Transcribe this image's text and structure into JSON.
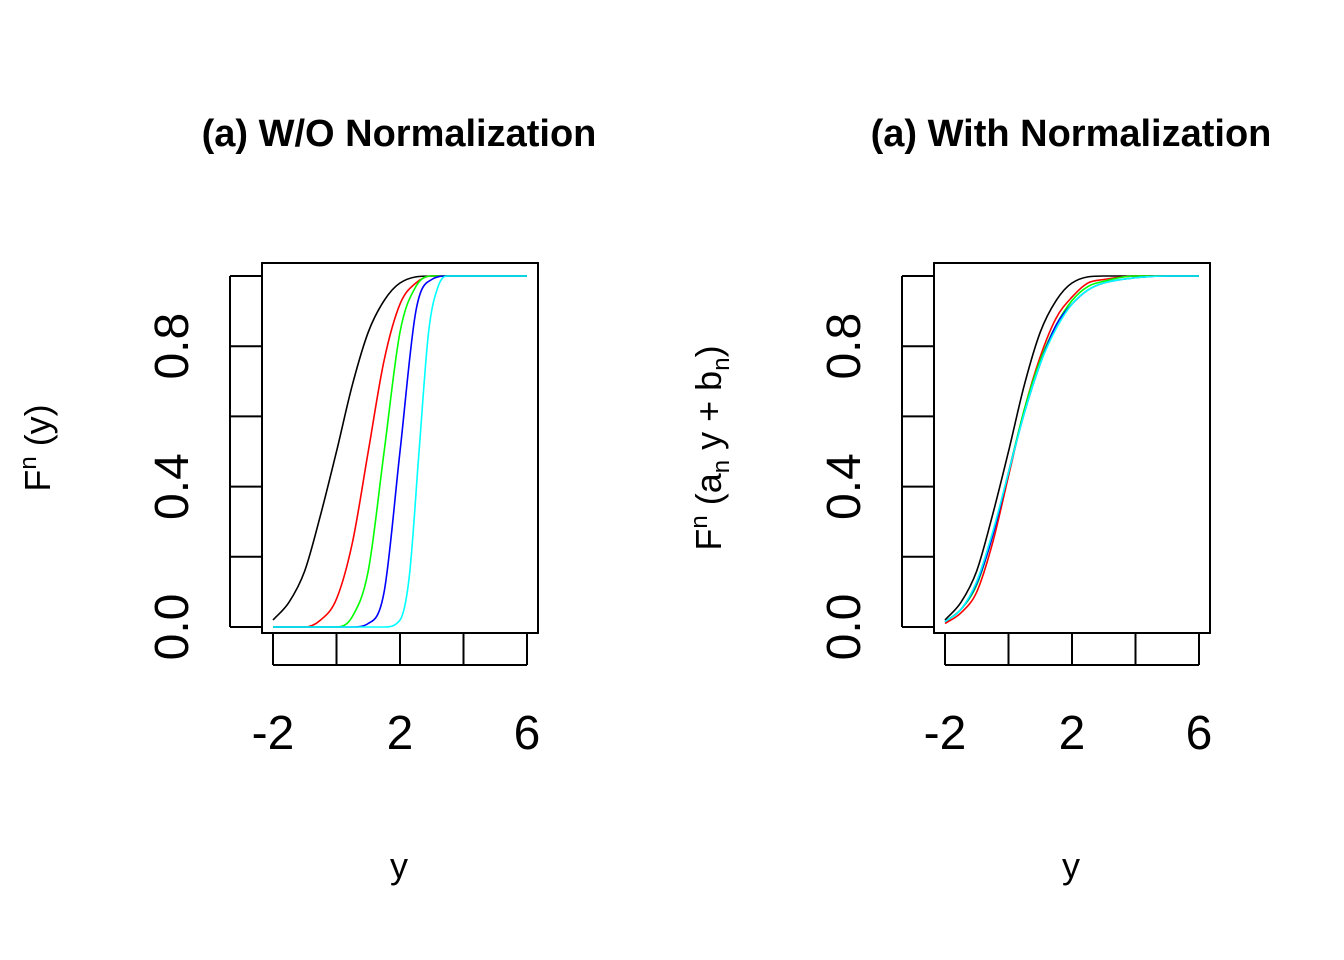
{
  "chart_data": [
    {
      "type": "line",
      "title": "(a) W/O Normalization",
      "xlabel": "y",
      "ylabel": {
        "base": "F",
        "sup": "n",
        "rest": " (y)"
      },
      "xlim": [
        -2,
        6
      ],
      "ylim": [
        0,
        1
      ],
      "xticks": [
        -2,
        0,
        2,
        4,
        6
      ],
      "xtick_labels": [
        "-2",
        "",
        "2",
        "",
        "6"
      ],
      "yticks": [
        0,
        0.2,
        0.4,
        0.6,
        0.8,
        1.0
      ],
      "ytick_labels": [
        "0.0",
        "",
        "0.4",
        "",
        "0.8",
        ""
      ],
      "grid": false,
      "series": [
        {
          "color": "#000000",
          "x": [
            -2,
            -1.5,
            -1,
            -0.5,
            0,
            0.5,
            1,
            1.5,
            2,
            3,
            4,
            5,
            6
          ],
          "y": [
            0.02,
            0.07,
            0.16,
            0.32,
            0.5,
            0.69,
            0.84,
            0.93,
            0.98,
            1.0,
            1.0,
            1.0,
            1.0
          ]
        },
        {
          "color": "#ff0000",
          "x": [
            -2,
            -1,
            -0.5,
            0,
            0.5,
            1,
            1.5,
            2,
            2.5,
            3,
            4,
            5,
            6
          ],
          "y": [
            0.0,
            0.0,
            0.02,
            0.08,
            0.24,
            0.5,
            0.76,
            0.92,
            0.98,
            1.0,
            1.0,
            1.0,
            1.0
          ]
        },
        {
          "color": "#00ff00",
          "x": [
            -2,
            0,
            0.5,
            1,
            1.5,
            2,
            2.5,
            3,
            3.5,
            4,
            5,
            6
          ],
          "y": [
            0.0,
            0.0,
            0.03,
            0.16,
            0.5,
            0.84,
            0.97,
            1.0,
            1.0,
            1.0,
            1.0,
            1.0
          ]
        },
        {
          "color": "#0000ff",
          "x": [
            -2,
            0.5,
            1,
            1.5,
            2,
            2.5,
            3,
            3.5,
            4,
            5,
            6
          ],
          "y": [
            0.0,
            0.0,
            0.01,
            0.1,
            0.5,
            0.9,
            0.99,
            1.0,
            1.0,
            1.0,
            1.0
          ]
        },
        {
          "color": "#00ffff",
          "x": [
            -2,
            1.5,
            2,
            2.3,
            2.6,
            2.9,
            3.2,
            3.5,
            4,
            5,
            6
          ],
          "y": [
            0.0,
            0.0,
            0.02,
            0.15,
            0.5,
            0.84,
            0.97,
            1.0,
            1.0,
            1.0,
            1.0
          ]
        }
      ]
    },
    {
      "type": "line",
      "title": "(a) With Normalization",
      "xlabel": "y",
      "ylabel": {
        "base": "F",
        "sup": "n",
        "open": " (a",
        "sub1": "n",
        "mid": " y + b",
        "sub2": "n",
        "close": ")"
      },
      "xlim": [
        -2,
        6
      ],
      "ylim": [
        0,
        1
      ],
      "xticks": [
        -2,
        0,
        2,
        4,
        6
      ],
      "xtick_labels": [
        "-2",
        "",
        "2",
        "",
        "6"
      ],
      "yticks": [
        0,
        0.2,
        0.4,
        0.6,
        0.8,
        1.0
      ],
      "ytick_labels": [
        "0.0",
        "",
        "0.4",
        "",
        "0.8",
        ""
      ],
      "grid": false,
      "series": [
        {
          "color": "#000000",
          "x": [
            -2,
            -1.5,
            -1,
            -0.5,
            0,
            0.5,
            1,
            1.5,
            2,
            3,
            4,
            5,
            6
          ],
          "y": [
            0.02,
            0.07,
            0.16,
            0.32,
            0.5,
            0.69,
            0.84,
            0.93,
            0.98,
            1.0,
            1.0,
            1.0,
            1.0
          ]
        },
        {
          "color": "#ff0000",
          "x": [
            -2,
            -1.5,
            -1,
            -0.5,
            0,
            0.5,
            1,
            1.5,
            2,
            2.5,
            3,
            4,
            5,
            6
          ],
          "y": [
            0.01,
            0.04,
            0.1,
            0.24,
            0.43,
            0.62,
            0.77,
            0.88,
            0.94,
            0.98,
            0.99,
            1.0,
            1.0,
            1.0
          ]
        },
        {
          "color": "#00ff00",
          "x": [
            -2,
            -1.5,
            -1,
            -0.5,
            0,
            0.5,
            1,
            1.5,
            2,
            2.5,
            3,
            4,
            5,
            6
          ],
          "y": [
            0.015,
            0.05,
            0.12,
            0.26,
            0.44,
            0.62,
            0.76,
            0.86,
            0.93,
            0.97,
            0.985,
            1.0,
            1.0,
            1.0
          ]
        },
        {
          "color": "#0000ff",
          "x": [
            -2,
            -1.5,
            -1,
            -0.5,
            0,
            0.5,
            1,
            1.5,
            2,
            2.5,
            3,
            4,
            5,
            6
          ],
          "y": [
            0.015,
            0.05,
            0.125,
            0.26,
            0.44,
            0.61,
            0.75,
            0.86,
            0.92,
            0.96,
            0.98,
            0.995,
            1.0,
            1.0
          ]
        },
        {
          "color": "#00ffff",
          "x": [
            -2,
            -1.5,
            -1,
            -0.5,
            0,
            0.5,
            1,
            1.5,
            2,
            2.5,
            3,
            4,
            5,
            6
          ],
          "y": [
            0.015,
            0.05,
            0.13,
            0.27,
            0.44,
            0.61,
            0.75,
            0.85,
            0.92,
            0.96,
            0.98,
            0.995,
            1.0,
            1.0
          ]
        }
      ]
    }
  ]
}
